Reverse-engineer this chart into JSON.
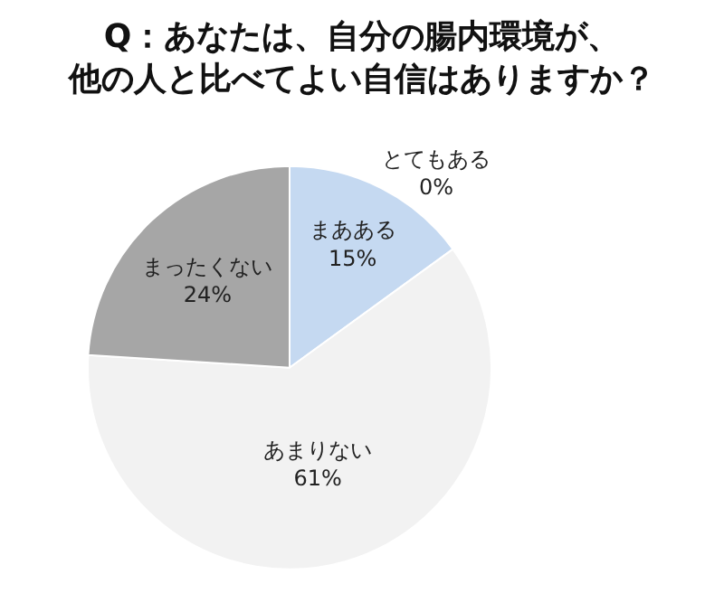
{
  "chart_data": {
    "type": "pie",
    "title": "Q：あなたは、自分の腸内環境が、他の人と比べてよい自信はありますか？",
    "categories": [
      "とてもある",
      "まあある",
      "あまりない",
      "まったくない"
    ],
    "values": [
      0,
      15,
      61,
      24
    ],
    "value_labels": [
      "0%",
      "15%",
      "61%",
      "24%"
    ],
    "colors": [
      "#1f3864",
      "#c5d9f1",
      "#f2f2f2",
      "#a6a6a6"
    ],
    "legend": false
  }
}
